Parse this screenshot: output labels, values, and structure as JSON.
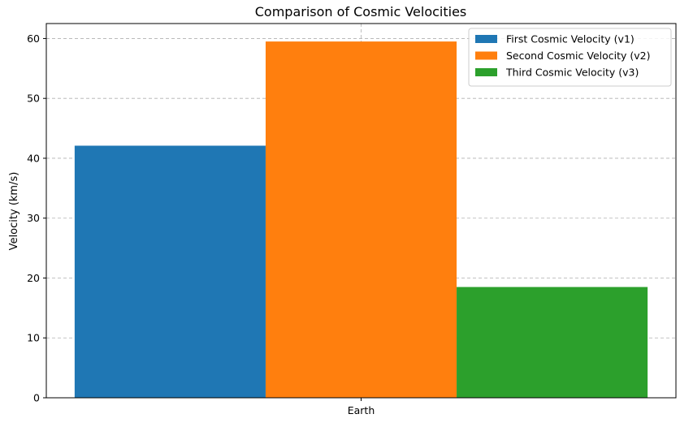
{
  "chart_data": {
    "type": "bar",
    "title": "Comparison of Cosmic Velocities",
    "xlabel": "",
    "ylabel": "Velocity (km/s)",
    "categories": [
      "Earth"
    ],
    "series": [
      {
        "name": "First Cosmic Velocity (v1)",
        "values": [
          42.1
        ],
        "color": "#1f77b4"
      },
      {
        "name": "Second Cosmic Velocity (v2)",
        "values": [
          59.5
        ],
        "color": "#ff7f0e"
      },
      {
        "name": "Third Cosmic Velocity (v3)",
        "values": [
          18.5
        ],
        "color": "#2ca02c"
      }
    ],
    "ylim": [
      0,
      62.5
    ],
    "yticks": [
      0,
      10,
      20,
      30,
      40,
      50,
      60
    ],
    "grid": true,
    "legend_position": "top-right"
  }
}
